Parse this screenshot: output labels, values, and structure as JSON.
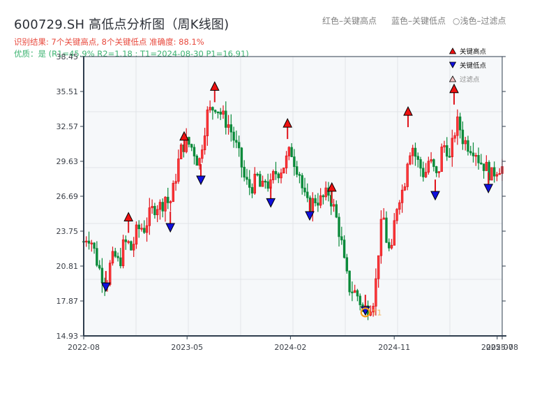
{
  "header": {
    "title": "600729.SH 高低点分析图（周K线图)",
    "result_line": "识别结果: 7个关键高点, 8个关键低点  准确度: 88.1%",
    "quality_line": "优质：是 (R1=45.9%  R2=1.18 ; T1=2024-08-30 P1=16.91)",
    "notes": [
      {
        "text": "红色–关键高点",
        "x": 462
      },
      {
        "text": "蓝色–关键低点",
        "x": 561
      },
      {
        "text": "○浅色–过滤点",
        "x": 649
      }
    ]
  },
  "legend": {
    "items": [
      {
        "label": "关键高点",
        "marker": "triangle-up",
        "color": "#ee1111"
      },
      {
        "label": "关键低点",
        "marker": "triangle-down",
        "color": "#1010dd"
      },
      {
        "label": "过滤点",
        "marker": "triangle-up-light",
        "color": "#f4c2c2"
      }
    ]
  },
  "colors": {
    "up": "#e0141c",
    "down": "#0a8a3a",
    "high_marker": "#ee1111",
    "low_marker": "#1010dd",
    "t1_ring": "#f59e1b",
    "axis": "#2f3e4e",
    "grid": "#e1e4e8",
    "plot_bg": "#f6f8fa"
  },
  "chart_data": {
    "type": "candlestick",
    "title": "600729.SH 高低点分析图（周K线图)",
    "xlabel": "",
    "ylabel": "",
    "ylim": [
      14.93,
      38.45
    ],
    "yticks": [
      14.93,
      17.87,
      20.81,
      23.75,
      26.69,
      29.63,
      32.57,
      35.51,
      38.45
    ],
    "xticks": [
      {
        "label": "2022-08",
        "pos": 0.0
      },
      {
        "label": "2023-05",
        "pos": 0.247
      },
      {
        "label": "2024-02",
        "pos": 0.494
      },
      {
        "label": "2024-11",
        "pos": 0.742
      },
      {
        "label": "2025-07",
        "pos": 0.988
      },
      {
        "label": "2025-08",
        "pos": 1.0
      }
    ],
    "grid": true,
    "key_highs": [
      {
        "pos": 0.107,
        "price": 24.9
      },
      {
        "pos": 0.24,
        "price": 31.7
      },
      {
        "pos": 0.313,
        "price": 35.9
      },
      {
        "pos": 0.487,
        "price": 32.8
      },
      {
        "pos": 0.593,
        "price": 27.4
      },
      {
        "pos": 0.775,
        "price": 33.8
      },
      {
        "pos": 0.885,
        "price": 35.7
      }
    ],
    "key_lows": [
      {
        "pos": 0.053,
        "price": 19.1
      },
      {
        "pos": 0.207,
        "price": 24.1
      },
      {
        "pos": 0.28,
        "price": 28.1
      },
      {
        "pos": 0.447,
        "price": 26.2
      },
      {
        "pos": 0.54,
        "price": 25.1
      },
      {
        "pos": 0.673,
        "price": 17.1
      },
      {
        "pos": 0.84,
        "price": 26.8
      },
      {
        "pos": 0.967,
        "price": 27.4
      }
    ],
    "filtered_points": [],
    "annotations": [
      {
        "label": "T1",
        "pos": 0.673,
        "price": 16.91,
        "date": "2024-08-30"
      }
    ],
    "close_path": [
      [
        0.0,
        22.9
      ],
      [
        0.01,
        23.5
      ],
      [
        0.02,
        22.8
      ],
      [
        0.03,
        21.4
      ],
      [
        0.04,
        20.3
      ],
      [
        0.05,
        19.7
      ],
      [
        0.055,
        19.4
      ],
      [
        0.065,
        21.2
      ],
      [
        0.075,
        21.6
      ],
      [
        0.085,
        20.9
      ],
      [
        0.095,
        22.6
      ],
      [
        0.105,
        22.8
      ],
      [
        0.115,
        22.1
      ],
      [
        0.125,
        23.6
      ],
      [
        0.135,
        24.1
      ],
      [
        0.145,
        24.0
      ],
      [
        0.155,
        24.9
      ],
      [
        0.165,
        25.6
      ],
      [
        0.175,
        26.0
      ],
      [
        0.185,
        25.8
      ],
      [
        0.195,
        26.7
      ],
      [
        0.205,
        25.9
      ],
      [
        0.215,
        27.4
      ],
      [
        0.225,
        29.4
      ],
      [
        0.235,
        30.9
      ],
      [
        0.245,
        31.2
      ],
      [
        0.255,
        31.0
      ],
      [
        0.265,
        30.4
      ],
      [
        0.275,
        29.3
      ],
      [
        0.285,
        31.6
      ],
      [
        0.295,
        33.6
      ],
      [
        0.305,
        34.0
      ],
      [
        0.315,
        34.4
      ],
      [
        0.325,
        33.8
      ],
      [
        0.335,
        33.2
      ],
      [
        0.345,
        32.8
      ],
      [
        0.355,
        31.9
      ],
      [
        0.365,
        30.8
      ],
      [
        0.375,
        29.6
      ],
      [
        0.385,
        28.0
      ],
      [
        0.395,
        27.5
      ],
      [
        0.405,
        27.6
      ],
      [
        0.415,
        28.3
      ],
      [
        0.425,
        27.0
      ],
      [
        0.435,
        28.2
      ],
      [
        0.445,
        27.3
      ],
      [
        0.455,
        28.6
      ],
      [
        0.465,
        28.8
      ],
      [
        0.475,
        29.1
      ],
      [
        0.485,
        29.8
      ],
      [
        0.495,
        30.6
      ],
      [
        0.505,
        29.5
      ],
      [
        0.515,
        28.8
      ],
      [
        0.525,
        26.8
      ],
      [
        0.535,
        25.9
      ],
      [
        0.545,
        26.1
      ],
      [
        0.555,
        26.5
      ],
      [
        0.565,
        26.3
      ],
      [
        0.575,
        26.6
      ],
      [
        0.585,
        27.0
      ],
      [
        0.595,
        26.0
      ],
      [
        0.605,
        24.6
      ],
      [
        0.615,
        23.0
      ],
      [
        0.625,
        20.4
      ],
      [
        0.635,
        19.0
      ],
      [
        0.645,
        18.7
      ],
      [
        0.655,
        18.3
      ],
      [
        0.665,
        17.4
      ],
      [
        0.675,
        17.2
      ],
      [
        0.685,
        17.6
      ],
      [
        0.695,
        18.2
      ],
      [
        0.705,
        22.4
      ],
      [
        0.715,
        25.3
      ],
      [
        0.725,
        22.6
      ],
      [
        0.735,
        21.6
      ],
      [
        0.745,
        25.5
      ],
      [
        0.755,
        26.8
      ],
      [
        0.765,
        27.4
      ],
      [
        0.775,
        30.3
      ],
      [
        0.785,
        31.0
      ],
      [
        0.795,
        29.8
      ],
      [
        0.805,
        29.1
      ],
      [
        0.815,
        28.4
      ],
      [
        0.825,
        29.8
      ],
      [
        0.835,
        29.0
      ],
      [
        0.845,
        28.1
      ],
      [
        0.855,
        30.5
      ],
      [
        0.865,
        31.2
      ],
      [
        0.875,
        29.6
      ],
      [
        0.885,
        32.0
      ],
      [
        0.895,
        33.0
      ],
      [
        0.905,
        31.6
      ],
      [
        0.915,
        31.1
      ],
      [
        0.925,
        30.9
      ],
      [
        0.935,
        30.7
      ],
      [
        0.945,
        29.7
      ],
      [
        0.955,
        29.4
      ],
      [
        0.965,
        28.9
      ],
      [
        0.975,
        28.4
      ],
      [
        0.985,
        29.0
      ],
      [
        0.995,
        29.2
      ],
      [
        1.0,
        29.1
      ]
    ]
  }
}
